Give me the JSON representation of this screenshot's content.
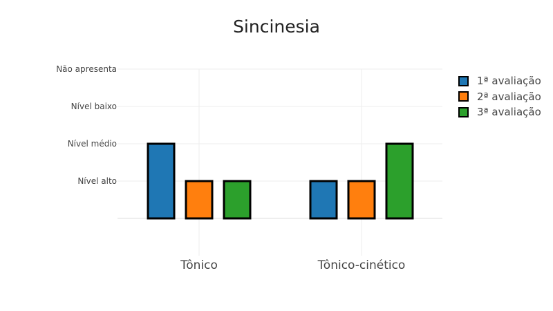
{
  "chart_data": {
    "type": "bar",
    "title": "Sincinesia",
    "xlabel": "",
    "ylabel": "",
    "categories": [
      "Tônico",
      "Tônico-cinético"
    ],
    "y_tick_labels": [
      "Nível alto",
      "Nível médio",
      "Nível baixo",
      "Não apresenta"
    ],
    "y_tick_values": [
      1,
      2,
      3,
      4
    ],
    "ylim": [
      0,
      4
    ],
    "grid": true,
    "legend_position": "top-right",
    "series": [
      {
        "name": "1ª avaliação",
        "values": [
          2,
          1
        ],
        "color": "#1f77b4"
      },
      {
        "name": "2ª avaliação",
        "values": [
          1,
          1
        ],
        "color": "#ff7f0e"
      },
      {
        "name": "3ª avaliação",
        "values": [
          1,
          2
        ],
        "color": "#2ca02c"
      }
    ]
  }
}
